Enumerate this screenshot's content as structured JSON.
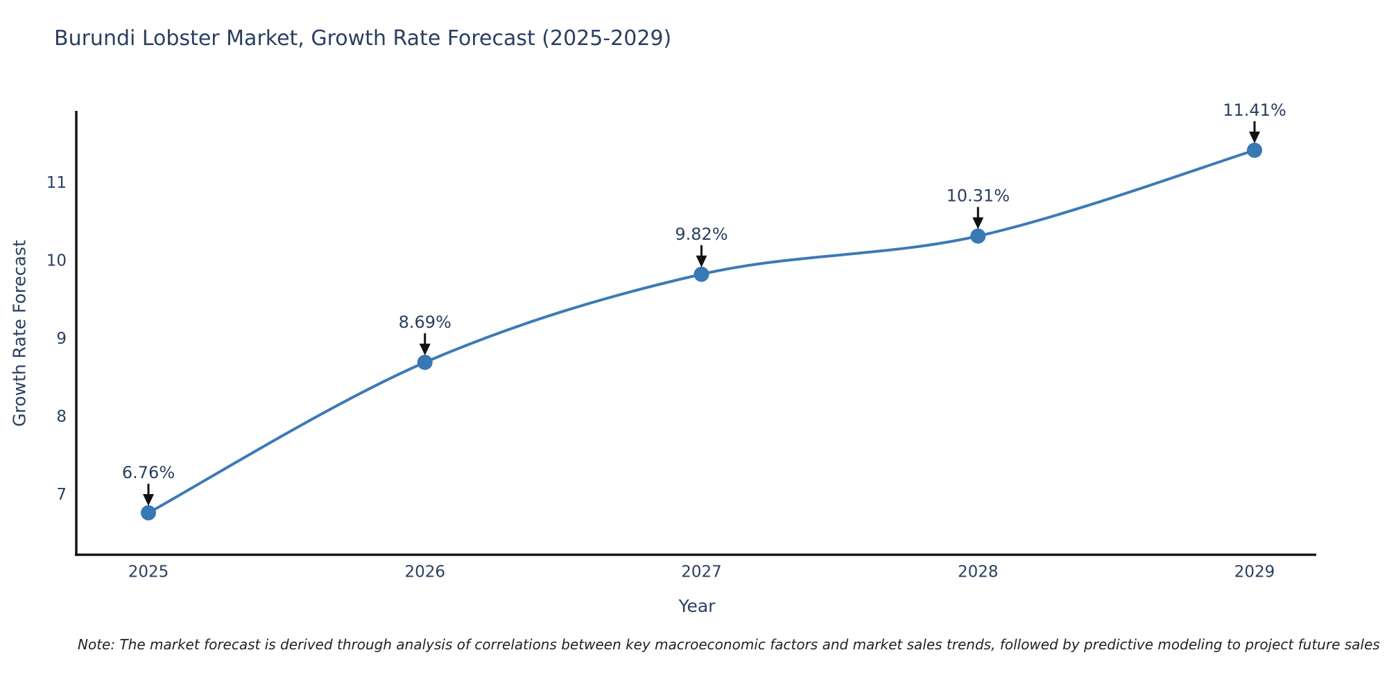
{
  "header": {
    "title": "Burundi Lobster Market, Growth Rate Forecast (2025-2029)"
  },
  "footer": {
    "note": "Note: The market forecast is derived through analysis of correlations between key macroeconomic factors and market sales trends, followed by predictive modeling to project future sales"
  },
  "chart_data": {
    "type": "line",
    "title": "Burundi Lobster Market, Growth Rate Forecast (2025-2029)",
    "xlabel": "Year",
    "ylabel": "Growth Rate Forecast",
    "x": [
      2025,
      2026,
      2027,
      2028,
      2029
    ],
    "xticks": [
      "2025",
      "2026",
      "2027",
      "2028",
      "2029"
    ],
    "series": [
      {
        "name": "Growth Rate Forecast",
        "values": [
          6.76,
          8.69,
          9.82,
          10.31,
          11.41
        ]
      }
    ],
    "point_labels": [
      "6.76%",
      "8.69%",
      "9.82%",
      "10.31%",
      "11.41%"
    ],
    "yticks": [
      7,
      8,
      9,
      10,
      11
    ],
    "ylim": [
      6.2,
      11.9
    ],
    "xlim": [
      2024.74,
      2029.22
    ],
    "line_shape": "spline",
    "grid": false,
    "legend": false,
    "annotation_style": "black-arrow-above-point",
    "colors": {
      "line": "#3d7ab5",
      "marker": "#3878b4",
      "axis_line": "#151515",
      "axis_text": "#2a3f5f",
      "title_text": "#2a3f5f",
      "annotation_arrow": "#111111",
      "note_text": "#222222",
      "background": "#ffffff"
    }
  }
}
